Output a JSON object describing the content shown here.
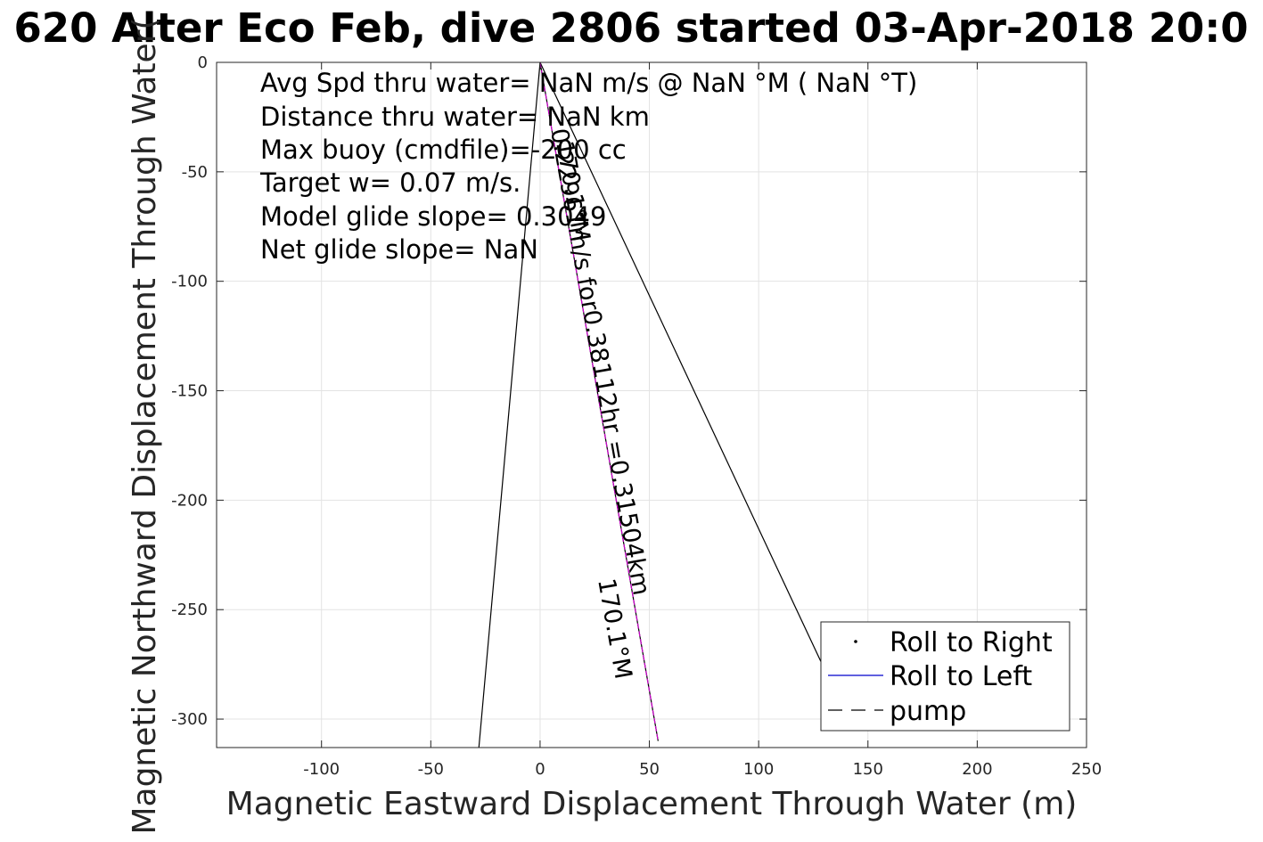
{
  "chart_data": {
    "type": "line",
    "title": "620 Alter Eco Feb, dive 2806 started 03-Apr-2018 20:0",
    "xlabel": "Magnetic Eastward Displacement Through Water (m)",
    "ylabel": "Magnetic Northward Displacement Through Water(",
    "xlim": [
      -148,
      250
    ],
    "ylim": [
      -313,
      0
    ],
    "xticks": [
      -100,
      -50,
      0,
      50,
      100,
      150,
      200,
      250
    ],
    "yticks": [
      0,
      -50,
      -100,
      -150,
      -200,
      -250,
      -300
    ],
    "xtick_labels": [
      "-100",
      "-50",
      "0",
      "50",
      "100",
      "150",
      "200",
      "250"
    ],
    "ytick_labels": [
      "0",
      "-50",
      "-100",
      "-150",
      "-200",
      "-250",
      "-300"
    ],
    "grid": true,
    "info_lines": [
      "Avg Spd thru water=   NaN m/s @   NaN °M (  NaN °T)",
      "Distance thru water=   NaN km",
      "Max buoy (cmdfile)=-200 cc",
      "Target w= 0.07 m/s.",
      "Model glide slope= 0.3049",
      "Net glide slope=    NaN"
    ],
    "track_labels": [
      {
        "text": "0.22961m/s for0.38112hr =0.31504km",
        "color": "#000000"
      },
      {
        "text": "170.1°M",
        "color": "#000000"
      },
      {
        "text": "170.1°M",
        "color": "#000000"
      }
    ],
    "series": [
      {
        "name": "Roll to Right",
        "style": "dot",
        "color": "#000000",
        "points": []
      },
      {
        "name": "Roll to Left",
        "style": "solid",
        "color": "#0000cc",
        "points": []
      },
      {
        "name": "pump",
        "style": "dashed",
        "color": "#000000",
        "points": []
      }
    ],
    "lines": [
      {
        "color": "#000000",
        "dash": false,
        "points": [
          [
            0,
            0
          ],
          [
            -28,
            -313
          ]
        ]
      },
      {
        "color": "#000000",
        "dash": false,
        "points": [
          [
            0,
            0
          ],
          [
            130,
            -277
          ]
        ]
      },
      {
        "color": "#000000",
        "dash": false,
        "points": [
          [
            0,
            0
          ],
          [
            54,
            -310
          ]
        ]
      },
      {
        "color": "#cc00cc",
        "dash": true,
        "points": [
          [
            0,
            0
          ],
          [
            54,
            -310
          ]
        ]
      }
    ],
    "legend_position": "bottom-right"
  }
}
